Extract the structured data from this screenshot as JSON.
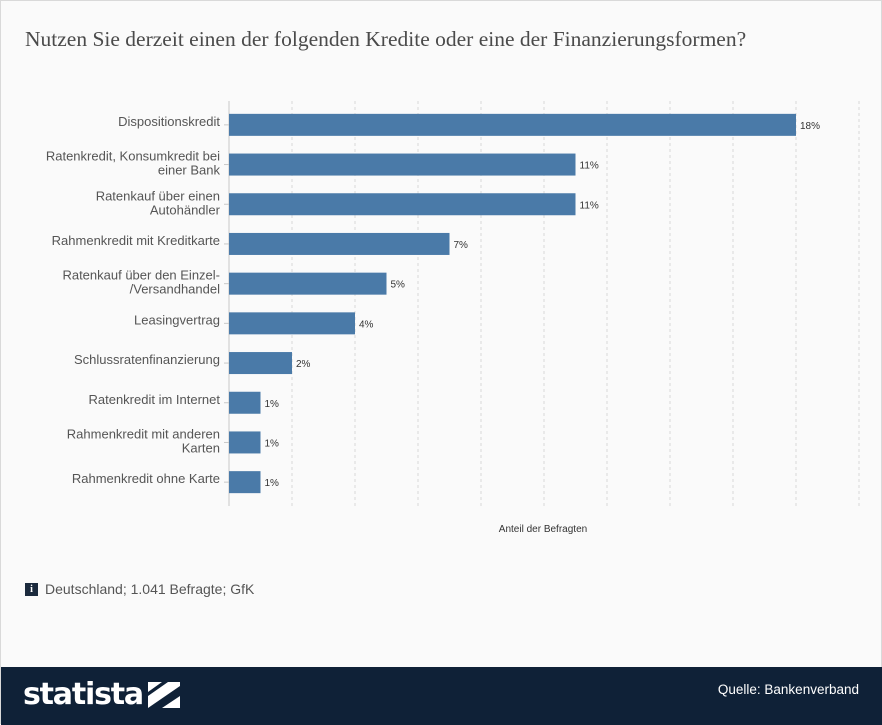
{
  "title": "Nutzen Sie derzeit einen der folgenden Kredite oder eine der Finanzierungsformen?",
  "note": "Deutschland; 1.041 Befragte; GfK",
  "footer": {
    "brand": "statista",
    "source": "Quelle: Bankenverband"
  },
  "colors": {
    "bar": "#4a7aa8",
    "footer": "#0f2137",
    "grid": "#d8d8d8"
  },
  "chart_data": {
    "type": "bar",
    "orientation": "horizontal",
    "categories": [
      [
        "Dispositionskredit"
      ],
      [
        "Ratenkredit, Konsumkredit bei",
        "einer Bank"
      ],
      [
        "Ratenkauf über einen",
        "Autohändler"
      ],
      [
        "Rahmenkredit mit Kreditkarte"
      ],
      [
        "Ratenkauf über den Einzel-",
        "/Versandhandel"
      ],
      [
        "Leasingvertrag"
      ],
      [
        "Schlussratenfinanzierung"
      ],
      [
        "Ratenkredit im Internet"
      ],
      [
        "Rahmenkredit mit anderen",
        "Karten"
      ],
      [
        "Rahmenkredit ohne Karte"
      ]
    ],
    "values": [
      18,
      11,
      11,
      7,
      5,
      4,
      2,
      1,
      1,
      1
    ],
    "value_labels": [
      "18%",
      "11%",
      "11%",
      "7%",
      "5%",
      "4%",
      "2%",
      "1%",
      "1%",
      "1%"
    ],
    "xlabel": "Anteil der Befragten",
    "xlim": [
      0,
      20
    ],
    "grid": true
  }
}
